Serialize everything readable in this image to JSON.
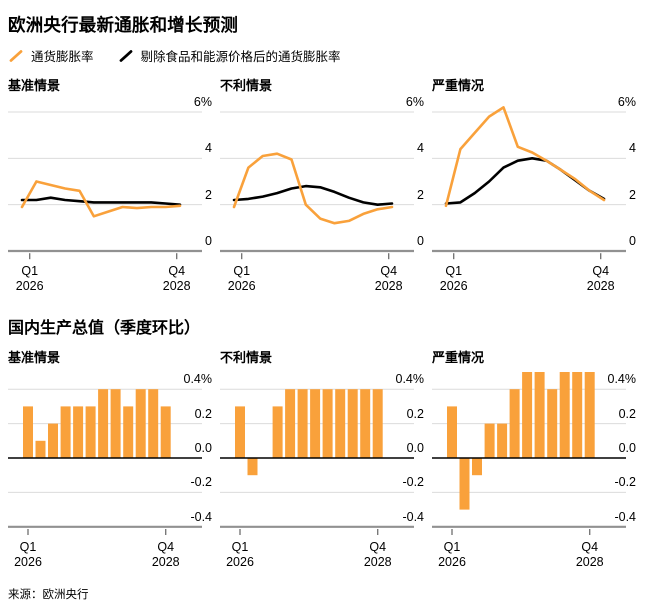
{
  "header": {
    "title": "欧洲央行最新通胀和增长预测"
  },
  "legend": {
    "items": [
      {
        "label": "通货膨胀率",
        "color": "#F9A13B"
      },
      {
        "label": "剔除食品和能源价格后的通货膨胀率",
        "color": "#000000"
      }
    ]
  },
  "sections": {
    "gdp_title": "国内生产总值（季度环比）"
  },
  "source": "来源：欧洲央行",
  "colors": {
    "accent_orange": "#F9A13B",
    "line_black": "#000000",
    "gridline": "#DBDBDB",
    "axis_gray": "#919191",
    "tick_gray": "#6e6e6e",
    "zero_black": "#000000"
  },
  "chart_data": [
    {
      "type": "line",
      "group": "通胀预测",
      "title": "基准情景",
      "x": [
        "2026Q1",
        "2026Q2",
        "2026Q3",
        "2026Q4",
        "2027Q1",
        "2027Q2",
        "2027Q3",
        "2027Q4",
        "2028Q1",
        "2028Q2",
        "2028Q3",
        "2028Q4"
      ],
      "xticks": [
        {
          "x_index": 0,
          "lines": [
            "Q1",
            "2026"
          ]
        },
        {
          "x_index": 11,
          "lines": [
            "Q4",
            "2028"
          ]
        }
      ],
      "yticks": [
        {
          "label": "6%",
          "value": 6
        },
        {
          "label": "4",
          "value": 4
        },
        {
          "label": "2",
          "value": 2
        },
        {
          "label": "0",
          "value": 0
        }
      ],
      "ylim": [
        0,
        6.4
      ],
      "grid": true,
      "legend_position": "top",
      "series": [
        {
          "name": "通货膨胀率",
          "color": "#F9A13B",
          "values": [
            1.9,
            3.0,
            2.85,
            2.7,
            2.6,
            1.5,
            1.7,
            1.9,
            1.85,
            1.9,
            1.9,
            1.95
          ]
        },
        {
          "name": "剔除食品和能源价格后的通货膨胀率",
          "color": "#000000",
          "values": [
            2.2,
            2.2,
            2.3,
            2.2,
            2.15,
            2.1,
            2.1,
            2.1,
            2.1,
            2.1,
            2.05,
            2.0
          ]
        }
      ]
    },
    {
      "type": "line",
      "group": "通胀预测",
      "title": "不利情景",
      "x": [
        "2026Q1",
        "2026Q2",
        "2026Q3",
        "2026Q4",
        "2027Q1",
        "2027Q2",
        "2027Q3",
        "2027Q4",
        "2028Q1",
        "2028Q2",
        "2028Q3",
        "2028Q4"
      ],
      "xticks": [
        {
          "x_index": 0,
          "lines": [
            "Q1",
            "2026"
          ]
        },
        {
          "x_index": 11,
          "lines": [
            "Q4",
            "2028"
          ]
        }
      ],
      "yticks": [
        {
          "label": "6%",
          "value": 6
        },
        {
          "label": "4",
          "value": 4
        },
        {
          "label": "2",
          "value": 2
        },
        {
          "label": "0",
          "value": 0
        }
      ],
      "ylim": [
        0,
        6.4
      ],
      "grid": true,
      "legend_position": "top",
      "series": [
        {
          "name": "通货膨胀率",
          "color": "#F9A13B",
          "values": [
            1.9,
            3.6,
            4.1,
            4.2,
            3.95,
            2.0,
            1.4,
            1.2,
            1.3,
            1.6,
            1.8,
            1.9
          ]
        },
        {
          "name": "剔除食品和能源价格后的通货膨胀率",
          "color": "#000000",
          "values": [
            2.2,
            2.25,
            2.35,
            2.5,
            2.7,
            2.8,
            2.75,
            2.55,
            2.3,
            2.1,
            2.0,
            2.05
          ]
        }
      ]
    },
    {
      "type": "line",
      "group": "通胀预测",
      "title": "严重情况",
      "x": [
        "2026Q1",
        "2026Q2",
        "2026Q3",
        "2026Q4",
        "2027Q1",
        "2027Q2",
        "2027Q3",
        "2027Q4",
        "2028Q1",
        "2028Q2",
        "2028Q3",
        "2028Q4"
      ],
      "xticks": [
        {
          "x_index": 0,
          "lines": [
            "Q1",
            "2026"
          ]
        },
        {
          "x_index": 11,
          "lines": [
            "Q4",
            "2028"
          ]
        }
      ],
      "yticks": [
        {
          "label": "6%",
          "value": 6
        },
        {
          "label": "4",
          "value": 4
        },
        {
          "label": "2",
          "value": 2
        },
        {
          "label": "0",
          "value": 0
        }
      ],
      "ylim": [
        0,
        6.4
      ],
      "grid": true,
      "legend_position": "top",
      "series": [
        {
          "name": "通货膨胀率",
          "color": "#F9A13B",
          "values": [
            1.95,
            4.4,
            5.1,
            5.8,
            6.2,
            4.5,
            4.25,
            3.9,
            3.5,
            3.1,
            2.6,
            2.2
          ]
        },
        {
          "name": "剔除食品和能源价格后的通货膨胀率",
          "color": "#000000",
          "values": [
            2.05,
            2.1,
            2.5,
            3.0,
            3.6,
            3.9,
            4.0,
            3.9,
            3.5,
            3.05,
            2.6,
            2.25
          ]
        }
      ]
    },
    {
      "type": "bar",
      "group": "国内生产总值（季度环比）",
      "title": "基准情景",
      "x": [
        "2026Q1",
        "2026Q2",
        "2026Q3",
        "2026Q4",
        "2027Q1",
        "2027Q2",
        "2027Q3",
        "2027Q4",
        "2028Q1",
        "2028Q2",
        "2028Q3",
        "2028Q4"
      ],
      "xticks": [
        {
          "x_index": 0,
          "lines": [
            "Q1",
            "2026"
          ]
        },
        {
          "x_index": 11,
          "lines": [
            "Q4",
            "2028"
          ]
        }
      ],
      "yticks": [
        {
          "label": "0.4%",
          "value": 0.4
        },
        {
          "label": "0.2",
          "value": 0.2
        },
        {
          "label": "0.0",
          "value": 0
        },
        {
          "label": "-0.2",
          "value": -0.2
        },
        {
          "label": "-0.4",
          "value": -0.4
        }
      ],
      "ylim": [
        -0.45,
        0.52
      ],
      "grid": true,
      "bar_color": "#F9A13B",
      "values": [
        0.3,
        0.1,
        0.2,
        0.3,
        0.3,
        0.3,
        0.4,
        0.4,
        0.3,
        0.4,
        0.4,
        0.3
      ]
    },
    {
      "type": "bar",
      "group": "国内生产总值（季度环比）",
      "title": "不利情景",
      "x": [
        "2026Q1",
        "2026Q2",
        "2026Q3",
        "2026Q4",
        "2027Q1",
        "2027Q2",
        "2027Q3",
        "2027Q4",
        "2028Q1",
        "2028Q2",
        "2028Q3",
        "2028Q4"
      ],
      "xticks": [
        {
          "x_index": 0,
          "lines": [
            "Q1",
            "2026"
          ]
        },
        {
          "x_index": 11,
          "lines": [
            "Q4",
            "2028"
          ]
        }
      ],
      "yticks": [
        {
          "label": "0.4%",
          "value": 0.4
        },
        {
          "label": "0.2",
          "value": 0.2
        },
        {
          "label": "0.0",
          "value": 0
        },
        {
          "label": "-0.2",
          "value": -0.2
        },
        {
          "label": "-0.4",
          "value": -0.4
        }
      ],
      "ylim": [
        -0.45,
        0.52
      ],
      "grid": true,
      "bar_color": "#F9A13B",
      "values": [
        0.3,
        -0.1,
        0.0,
        0.3,
        0.4,
        0.4,
        0.4,
        0.4,
        0.4,
        0.4,
        0.4,
        0.4
      ]
    },
    {
      "type": "bar",
      "group": "国内生产总值（季度环比）",
      "title": "严重情况",
      "x": [
        "2026Q1",
        "2026Q2",
        "2026Q3",
        "2026Q4",
        "2027Q1",
        "2027Q2",
        "2027Q3",
        "2027Q4",
        "2028Q1",
        "2028Q2",
        "2028Q3",
        "2028Q4"
      ],
      "xticks": [
        {
          "x_index": 0,
          "lines": [
            "Q1",
            "2026"
          ]
        },
        {
          "x_index": 11,
          "lines": [
            "Q4",
            "2028"
          ]
        }
      ],
      "yticks": [
        {
          "label": "0.4%",
          "value": 0.4
        },
        {
          "label": "0.2",
          "value": 0.2
        },
        {
          "label": "0.0",
          "value": 0
        },
        {
          "label": "-0.2",
          "value": -0.2
        },
        {
          "label": "-0.4",
          "value": -0.4
        }
      ],
      "ylim": [
        -0.45,
        0.52
      ],
      "grid": true,
      "bar_color": "#F9A13B",
      "values": [
        0.3,
        -0.3,
        -0.1,
        0.2,
        0.2,
        0.4,
        0.5,
        0.5,
        0.4,
        0.5,
        0.5,
        0.5
      ]
    }
  ]
}
